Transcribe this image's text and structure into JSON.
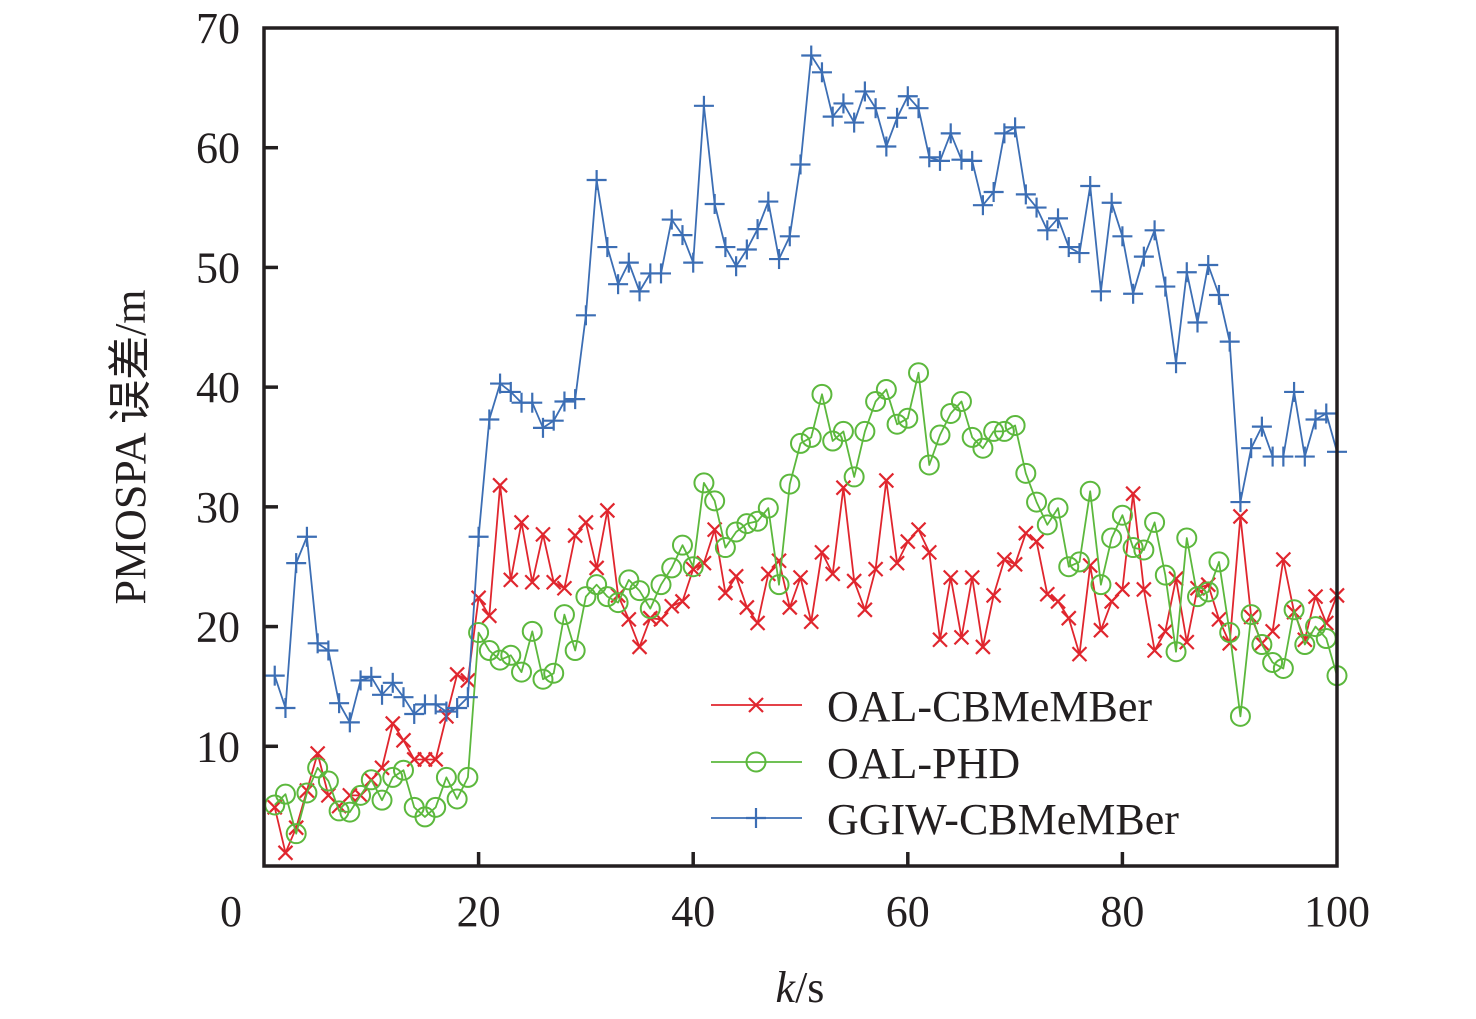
{
  "chart_data": {
    "type": "line",
    "title": "",
    "xlabel_italic": "k",
    "xlabel_rest": "/s",
    "ylabel": "PMOSPA 误差/m",
    "xlim": [
      0,
      100
    ],
    "ylim": [
      0,
      70
    ],
    "xticks": [
      0,
      20,
      40,
      60,
      80,
      100
    ],
    "yticks": [
      10,
      20,
      30,
      40,
      50,
      60,
      70
    ],
    "grid": false,
    "legend_position": "bottom-right",
    "x": [
      1,
      2,
      3,
      4,
      5,
      6,
      7,
      8,
      9,
      10,
      11,
      12,
      13,
      14,
      15,
      16,
      17,
      18,
      19,
      20,
      21,
      22,
      23,
      24,
      25,
      26,
      27,
      28,
      29,
      30,
      31,
      32,
      33,
      34,
      35,
      36,
      37,
      38,
      39,
      40,
      41,
      42,
      43,
      44,
      45,
      46,
      47,
      48,
      49,
      50,
      51,
      52,
      53,
      54,
      55,
      56,
      57,
      58,
      59,
      60,
      61,
      62,
      63,
      64,
      65,
      66,
      67,
      68,
      69,
      70,
      71,
      72,
      73,
      74,
      75,
      76,
      77,
      78,
      79,
      80,
      81,
      82,
      83,
      84,
      85,
      86,
      87,
      88,
      89,
      90,
      91,
      92,
      93,
      94,
      95,
      96,
      97,
      98,
      99,
      100
    ],
    "series": [
      {
        "name": "OAL-CBMeMBer",
        "color": "#e0262e",
        "marker": "x",
        "values": [
          4.9,
          1.1,
          3.2,
          6.3,
          9.4,
          5.9,
          5.0,
          5.9,
          5.9,
          7.2,
          8.2,
          11.9,
          10.5,
          8.9,
          8.9,
          8.9,
          12.5,
          16.0,
          15.5,
          22.4,
          20.9,
          31.8,
          23.9,
          28.7,
          23.7,
          27.7,
          23.7,
          23.2,
          27.6,
          28.7,
          24.9,
          29.7,
          22.6,
          20.6,
          18.3,
          20.7,
          20.6,
          21.7,
          22.1,
          24.8,
          25.3,
          28.1,
          22.8,
          24.2,
          21.6,
          20.3,
          24.4,
          25.5,
          21.6,
          24.1,
          20.4,
          26.2,
          24.4,
          31.6,
          23.8,
          21.4,
          24.8,
          32.2,
          25.3,
          27.1,
          28.1,
          26.2,
          18.9,
          24.1,
          19.1,
          24.1,
          18.3,
          22.6,
          25.6,
          25.2,
          27.8,
          27.1,
          22.7,
          22.1,
          20.7,
          17.7,
          25.1,
          19.7,
          22.1,
          23.1,
          31.1,
          23.1,
          18.0,
          19.6,
          24.0,
          18.7,
          23.2,
          23.5,
          20.6,
          18.6,
          29.2,
          20.8,
          18.6,
          19.6,
          25.6,
          21.2,
          18.9,
          22.5,
          20.3,
          22.6
        ]
      },
      {
        "name": "OAL-PHD",
        "color": "#5cb83d",
        "marker": "o",
        "values": [
          5.1,
          6.0,
          2.7,
          6.1,
          8.2,
          7.1,
          4.6,
          4.5,
          5.9,
          7.2,
          5.5,
          7.4,
          8.0,
          4.9,
          4.1,
          4.9,
          7.4,
          5.6,
          7.4,
          19.5,
          18.0,
          17.2,
          17.6,
          16.2,
          19.6,
          15.6,
          16.1,
          21.0,
          18.0,
          22.5,
          23.5,
          22.5,
          22.0,
          23.9,
          23.0,
          21.5,
          23.5,
          24.9,
          26.8,
          25.0,
          32.0,
          30.5,
          26.6,
          27.9,
          28.6,
          28.8,
          29.9,
          23.5,
          31.9,
          35.3,
          35.8,
          39.4,
          35.5,
          36.3,
          32.5,
          36.3,
          38.8,
          39.8,
          36.9,
          37.4,
          41.2,
          33.5,
          36.0,
          37.8,
          38.8,
          35.8,
          34.9,
          36.3,
          36.3,
          36.8,
          32.8,
          30.4,
          28.5,
          29.9,
          25.0,
          25.4,
          31.3,
          23.5,
          27.4,
          29.3,
          26.6,
          26.4,
          28.7,
          24.3,
          17.9,
          27.4,
          22.5,
          22.9,
          25.4,
          19.5,
          12.5,
          21.0,
          18.5,
          17.0,
          16.5,
          21.4,
          18.5,
          20.0,
          19.0,
          15.9
        ]
      },
      {
        "name": "GGIW-CBMeMBer",
        "color": "#3c6eb4",
        "marker": "+",
        "values": [
          15.9,
          13.2,
          25.3,
          27.5,
          18.6,
          18.0,
          13.6,
          12.0,
          15.5,
          15.8,
          14.3,
          15.3,
          14.1,
          12.7,
          13.5,
          13.5,
          12.9,
          13.2,
          14.1,
          27.5,
          37.3,
          40.3,
          39.6,
          38.7,
          38.7,
          36.6,
          37.2,
          38.8,
          39.0,
          46.0,
          57.3,
          51.7,
          48.6,
          50.4,
          48.0,
          49.5,
          49.5,
          54.0,
          52.7,
          50.4,
          63.5,
          55.3,
          51.7,
          50.1,
          51.5,
          53.2,
          55.5,
          50.7,
          52.6,
          58.6,
          67.7,
          66.3,
          62.6,
          63.7,
          62.1,
          64.7,
          63.3,
          60.1,
          62.5,
          64.3,
          63.3,
          59.2,
          58.9,
          61.2,
          59.0,
          58.9,
          55.2,
          56.3,
          61.2,
          61.7,
          56.1,
          55.0,
          53.1,
          54.1,
          51.7,
          51.2,
          56.8,
          48.0,
          55.4,
          52.6,
          47.8,
          50.9,
          53.1,
          48.4,
          42.0,
          49.6,
          45.4,
          50.2,
          47.7,
          43.8,
          30.4,
          34.9,
          36.7,
          34.2,
          34.2,
          39.6,
          34.2,
          37.3,
          37.8,
          34.6
        ]
      }
    ]
  }
}
